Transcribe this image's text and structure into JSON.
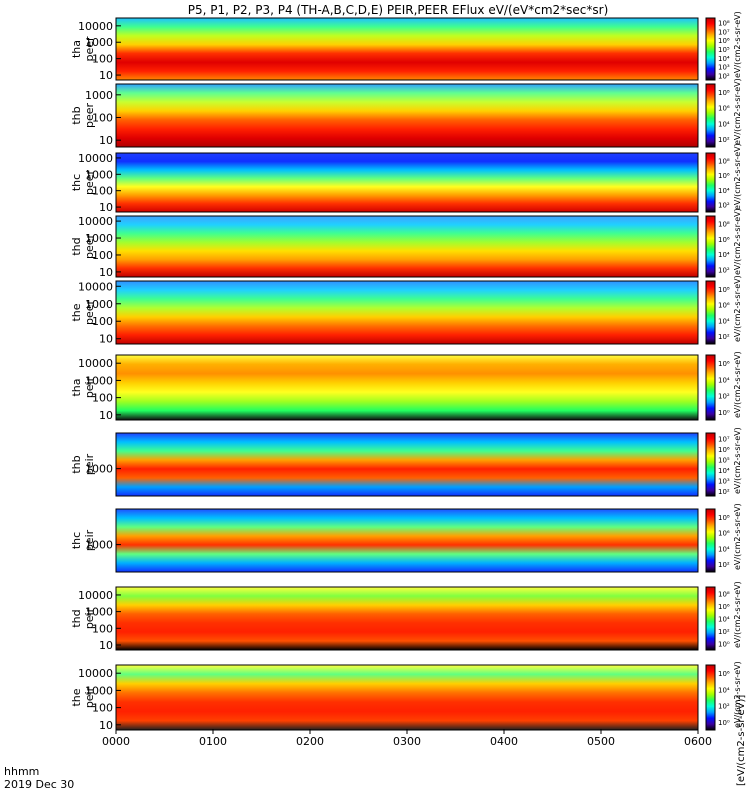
{
  "chart_data": {
    "type": "heatmap",
    "title": "P5, P1, P2, P3, P4 (TH-A,B,C,D,E) PEIR,PEER EFlux eV/(eV*cm2*sec*sr)",
    "date_label": "2019 Dec 30",
    "time_label": "hhmm",
    "x_ticks": [
      "0000",
      "0100",
      "0200",
      "0300",
      "0400",
      "0500",
      "0600"
    ],
    "xlim": [
      0,
      360
    ],
    "colorbar_unit": "eV/(cm2-s-sr-eV)",
    "colorbar_unit_repeat": "[eV/(cm2-s-sr-eV)]",
    "colormap": [
      "#000000",
      "#3a00a0",
      "#0010ff",
      "#00a0ff",
      "#00ffd8",
      "#20ff60",
      "#a0ff00",
      "#ffff00",
      "#ffb000",
      "#ff5000",
      "#ff0000",
      "#c00000"
    ],
    "panels": [
      {
        "probe": "tha",
        "product": "peer",
        "ylim": [
          5,
          30000
        ],
        "y_ticks": [
          "10",
          "100",
          "1000",
          "10000"
        ],
        "cbar_ticks": [
          "10²",
          "10³",
          "10⁴",
          "10⁵",
          "10⁶",
          "10⁷",
          "10⁸"
        ]
      },
      {
        "probe": "thb",
        "product": "peer",
        "ylim": [
          5,
          3000
        ],
        "y_ticks": [
          "10",
          "100",
          "1000"
        ],
        "cbar_ticks": [
          "10²",
          "10⁴",
          "10⁶",
          "10⁸"
        ]
      },
      {
        "probe": "thc",
        "product": "peer",
        "ylim": [
          5,
          20000
        ],
        "y_ticks": [
          "10",
          "100",
          "1000",
          "10000"
        ],
        "cbar_ticks": [
          "10²",
          "10⁴",
          "10⁶",
          "10⁸"
        ]
      },
      {
        "probe": "thd",
        "product": "peer",
        "ylim": [
          5,
          20000
        ],
        "y_ticks": [
          "10",
          "100",
          "1000",
          "10000"
        ],
        "cbar_ticks": [
          "10²",
          "10⁴",
          "10⁶",
          "10⁸"
        ]
      },
      {
        "probe": "the",
        "product": "peer",
        "ylim": [
          5,
          20000
        ],
        "y_ticks": [
          "10",
          "100",
          "1000",
          "10000"
        ],
        "cbar_ticks": [
          "10²",
          "10⁴",
          "10⁶",
          "10⁸"
        ]
      },
      {
        "probe": "tha",
        "product": "peir",
        "ylim": [
          5,
          30000
        ],
        "y_ticks": [
          "10",
          "100",
          "1000",
          "10000"
        ],
        "cbar_ticks": [
          "10⁰",
          "10²",
          "10⁴",
          "10⁶"
        ]
      },
      {
        "probe": "thb",
        "product": "peir",
        "ylim": [
          100,
          20000
        ],
        "y_ticks": [
          "1000"
        ],
        "cbar_ticks": [
          "10²",
          "10³",
          "10⁴",
          "10⁵",
          "10⁶",
          "10⁷"
        ]
      },
      {
        "probe": "thc",
        "product": "peir",
        "ylim": [
          100,
          20000
        ],
        "y_ticks": [
          "1000"
        ],
        "cbar_ticks": [
          "10²",
          "10⁴",
          "10⁶",
          "10⁸"
        ]
      },
      {
        "probe": "thd",
        "product": "peir",
        "ylim": [
          5,
          30000
        ],
        "y_ticks": [
          "10",
          "100",
          "1000",
          "10000"
        ],
        "cbar_ticks": [
          "10⁰",
          "10²",
          "10⁴",
          "10⁶",
          "10⁸"
        ]
      },
      {
        "probe": "the",
        "product": "peir",
        "ylim": [
          5,
          30000
        ],
        "y_ticks": [
          "10",
          "100",
          "1000",
          "10000"
        ],
        "cbar_ticks": [
          "10⁰",
          "10²",
          "10⁴",
          "10⁶"
        ]
      }
    ]
  }
}
